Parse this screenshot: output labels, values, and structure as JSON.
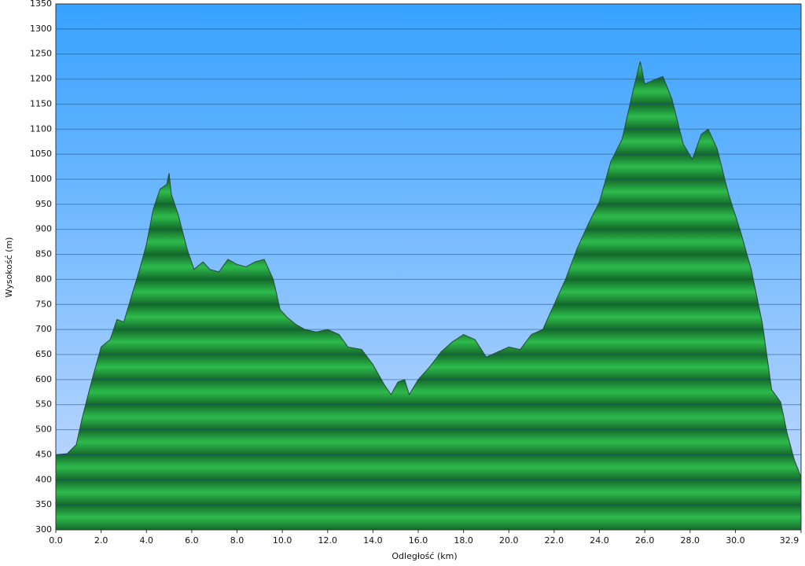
{
  "chart_data": {
    "type": "area",
    "xlabel": "Odległość  (km)",
    "ylabel": "Wysokość (m)",
    "x": [
      0,
      0.5,
      0.9,
      1.2,
      1.6,
      2.0,
      2.4,
      2.7,
      3.0,
      3.3,
      3.7,
      4.0,
      4.3,
      4.6,
      4.9,
      5.0,
      5.1,
      5.4,
      5.8,
      6.1,
      6.5,
      6.8,
      7.2,
      7.6,
      8.0,
      8.4,
      8.8,
      9.2,
      9.6,
      9.9,
      10.2,
      10.6,
      11.0,
      11.5,
      12.0,
      12.5,
      12.9,
      13.5,
      14.0,
      14.5,
      14.8,
      15.1,
      15.4,
      15.6,
      16.0,
      16.5,
      17.0,
      17.5,
      18.0,
      18.5,
      19.0,
      19.5,
      20.0,
      20.5,
      21.0,
      21.5,
      22.0,
      22.5,
      23.0,
      23.5,
      24.0,
      24.5,
      25.0,
      25.5,
      25.8,
      26.0,
      26.5,
      26.8,
      27.2,
      27.7,
      28.1,
      28.5,
      28.8,
      29.2,
      29.7,
      30.2,
      30.7,
      31.2,
      31.6,
      32.0,
      32.3,
      32.6,
      32.9
    ],
    "values": [
      450,
      452,
      470,
      530,
      600,
      665,
      680,
      720,
      715,
      760,
      820,
      870,
      940,
      980,
      990,
      1012,
      970,
      930,
      860,
      820,
      835,
      820,
      815,
      840,
      830,
      825,
      835,
      840,
      800,
      740,
      725,
      710,
      700,
      695,
      700,
      690,
      665,
      660,
      630,
      590,
      570,
      595,
      600,
      570,
      600,
      625,
      655,
      675,
      690,
      680,
      645,
      655,
      665,
      660,
      690,
      700,
      750,
      800,
      860,
      910,
      955,
      1035,
      1080,
      1180,
      1235,
      1190,
      1200,
      1205,
      1160,
      1070,
      1040,
      1090,
      1100,
      1060,
      970,
      900,
      820,
      710,
      580,
      555,
      490,
      440,
      405
    ],
    "color": "#1f9e3c",
    "xlim": [
      0,
      32.9
    ],
    "ylim": [
      300,
      1350
    ],
    "xticks": [
      {
        "value": 0,
        "label": "0.0"
      },
      {
        "value": 2,
        "label": "2.0"
      },
      {
        "value": 4,
        "label": "4.0"
      },
      {
        "value": 6,
        "label": "6.0"
      },
      {
        "value": 8,
        "label": "8.0"
      },
      {
        "value": 10,
        "label": "10.0"
      },
      {
        "value": 12,
        "label": "12.0"
      },
      {
        "value": 14,
        "label": "14.0"
      },
      {
        "value": 16,
        "label": "16.0"
      },
      {
        "value": 18,
        "label": "18.0"
      },
      {
        "value": 20,
        "label": "20.0"
      },
      {
        "value": 22,
        "label": "22.0"
      },
      {
        "value": 24,
        "label": "24.0"
      },
      {
        "value": 26,
        "label": "26.0"
      },
      {
        "value": 28,
        "label": "28.0"
      },
      {
        "value": 30,
        "label": "30.0"
      },
      32.9
    ],
    "yticks": [
      300,
      350,
      400,
      450,
      500,
      550,
      600,
      650,
      700,
      750,
      800,
      850,
      900,
      950,
      1000,
      1050,
      1100,
      1150,
      1200,
      1250,
      1300,
      1350
    ],
    "grid": true
  }
}
